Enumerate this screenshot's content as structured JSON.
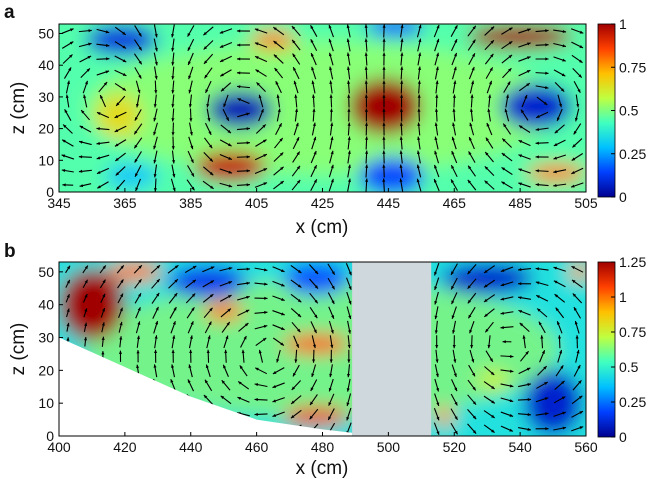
{
  "chart_data": [
    {
      "type": "heatmap",
      "panel_label": "a",
      "xlabel": "x (cm)",
      "ylabel": "z (cm)",
      "xlim": [
        345,
        505
      ],
      "ylim": [
        0,
        53
      ],
      "xticks": [
        345,
        365,
        385,
        405,
        425,
        445,
        465,
        485,
        505
      ],
      "yticks": [
        0,
        10,
        20,
        30,
        40,
        50
      ],
      "colorbar": {
        "min": 0,
        "max": 1,
        "ticks": [
          "0",
          "0.25",
          "0.5",
          "0.75",
          "1"
        ],
        "tick_values": [
          0,
          0.25,
          0.5,
          0.75,
          1
        ]
      },
      "colormap": [
        "#00008f",
        "#0040ff",
        "#00c0ff",
        "#40ffbf",
        "#bfff40",
        "#ffc000",
        "#ff4000",
        "#a00000"
      ],
      "arrow_color": "#000000",
      "features": [
        {
          "x": 400,
          "z": 26,
          "value": 0.05,
          "rx": 10,
          "rz": 6
        },
        {
          "x": 490,
          "z": 27,
          "value": 0.08,
          "rx": 11,
          "rz": 7
        },
        {
          "x": 364,
          "z": 48,
          "value": 0.1,
          "rx": 11,
          "rz": 5
        },
        {
          "x": 447,
          "z": 52,
          "value": 0.15,
          "rx": 9,
          "rz": 3
        },
        {
          "x": 446,
          "z": 5,
          "value": 0.15,
          "rx": 10,
          "rz": 6
        },
        {
          "x": 367,
          "z": 5,
          "value": 0.3,
          "rx": 8,
          "rz": 4
        },
        {
          "x": 444,
          "z": 27,
          "value": 1.0,
          "rx": 11,
          "rz": 9
        },
        {
          "x": 485,
          "z": 49,
          "value": 1.0,
          "rx": 16,
          "rz": 4
        },
        {
          "x": 397,
          "z": 8,
          "value": 0.95,
          "rx": 11,
          "rz": 5
        },
        {
          "x": 410,
          "z": 48,
          "value": 0.8,
          "rx": 7,
          "rz": 3
        },
        {
          "x": 496,
          "z": 6,
          "value": 0.8,
          "rx": 9,
          "rz": 3
        },
        {
          "x": 363,
          "z": 24,
          "value": 0.65,
          "rx": 7,
          "rz": 7
        }
      ],
      "vortices": [
        {
          "x": 400,
          "z": 27,
          "sign": 1,
          "strength": 1.0
        },
        {
          "x": 490,
          "z": 27,
          "sign": -1,
          "strength": 1.0
        },
        {
          "x": 364,
          "z": 30,
          "sign": -1,
          "strength": 0.6
        }
      ]
    },
    {
      "type": "heatmap",
      "panel_label": "b",
      "xlabel": "x (cm)",
      "ylabel": "z (cm)",
      "xlim": [
        400,
        560
      ],
      "ylim": [
        0,
        53
      ],
      "xticks": [
        400,
        420,
        440,
        460,
        480,
        500,
        520,
        540,
        560
      ],
      "yticks": [
        0,
        10,
        20,
        30,
        40,
        50
      ],
      "colorbar": {
        "min": 0,
        "max": 1.25,
        "ticks": [
          "0",
          "0.25",
          "0.5",
          "0.75",
          "1",
          "1.25"
        ],
        "tick_values": [
          0,
          0.25,
          0.5,
          0.75,
          1,
          1.25
        ]
      },
      "colormap": [
        "#00008f",
        "#0040ff",
        "#00c0ff",
        "#40ffbf",
        "#bfff40",
        "#ffc000",
        "#ff4000",
        "#a00000"
      ],
      "masked_region": {
        "x": [
          489,
          513
        ],
        "color": "#cfd8dc"
      },
      "no_data_below": [
        [
          400,
          30
        ],
        [
          420,
          21
        ],
        [
          440,
          12
        ],
        [
          460,
          5
        ],
        [
          480,
          2
        ],
        [
          489,
          1
        ]
      ],
      "arrow_color": "#000000",
      "features": [
        {
          "x": 410,
          "z": 40,
          "value": 1.3,
          "rx": 10,
          "rz": 11
        },
        {
          "x": 423,
          "z": 50,
          "value": 1.0,
          "rx": 8,
          "rz": 3
        },
        {
          "x": 450,
          "z": 38,
          "value": 1.0,
          "rx": 6,
          "rz": 3
        },
        {
          "x": 478,
          "z": 28,
          "value": 1.05,
          "rx": 10,
          "rz": 3
        },
        {
          "x": 478,
          "z": 6,
          "value": 1.1,
          "rx": 10,
          "rz": 3
        },
        {
          "x": 445,
          "z": 47,
          "value": 0.15,
          "rx": 12,
          "rz": 5
        },
        {
          "x": 478,
          "z": 48,
          "value": 0.2,
          "rx": 10,
          "rz": 5
        },
        {
          "x": 530,
          "z": 48,
          "value": 0.1,
          "rx": 14,
          "rz": 5
        },
        {
          "x": 550,
          "z": 10,
          "value": 0.1,
          "rx": 9,
          "rz": 10
        },
        {
          "x": 532,
          "z": 17,
          "value": 0.75,
          "rx": 5,
          "rz": 3
        },
        {
          "x": 517,
          "z": 6,
          "value": 0.95,
          "rx": 3,
          "rz": 3
        },
        {
          "x": 558,
          "z": 50,
          "value": 0.95,
          "rx": 3,
          "rz": 3
        }
      ],
      "vortices": [
        {
          "x": 465,
          "z": 25,
          "sign": -1,
          "strength": 0.7
        },
        {
          "x": 535,
          "z": 28,
          "sign": 1,
          "strength": 0.6
        }
      ]
    }
  ]
}
